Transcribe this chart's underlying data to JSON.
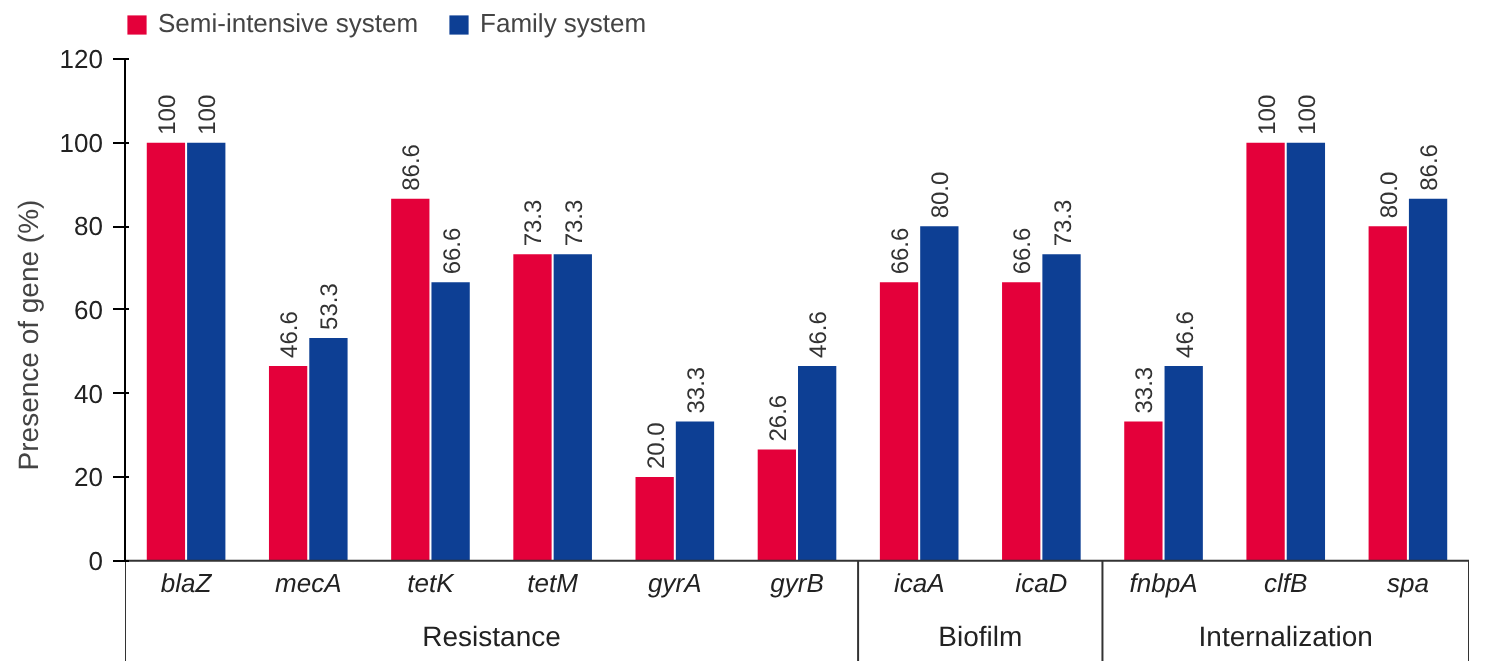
{
  "chart_data": {
    "type": "bar",
    "ylabel": "Presence of gene (%)",
    "categories": [
      "blaZ",
      "mecA",
      "tetK",
      "tetM",
      "gyrA",
      "gyrB",
      "icaA",
      "icaD",
      "fnbpA",
      "clfB",
      "spa"
    ],
    "series": [
      {
        "name": "Semi-intensive system",
        "color": "#e4003a",
        "values": [
          100,
          46.6,
          86.6,
          73.3,
          20.0,
          26.6,
          66.6,
          66.6,
          33.3,
          100,
          80.0
        ],
        "value_labels": [
          "100",
          "46.6",
          "86.6",
          "73.3",
          "20.0",
          "26.6",
          "66.6",
          "66.6",
          "33.3",
          "100",
          "80.0"
        ]
      },
      {
        "name": "Family system",
        "color": "#0d3f94",
        "values": [
          100,
          53.3,
          66.6,
          73.3,
          33.3,
          46.6,
          80.0,
          73.3,
          46.6,
          100,
          86.6
        ],
        "value_labels": [
          "100",
          "53.3",
          "66.6",
          "73.3",
          "33.3",
          "46.6",
          "80.0",
          "73.3",
          "46.6",
          "100",
          "86.6"
        ]
      }
    ],
    "ylim": [
      0,
      120
    ],
    "yticks": [
      0,
      20,
      40,
      60,
      80,
      100,
      120
    ],
    "grid": false,
    "legend": "top left",
    "annotations": [
      "Resistance",
      "Biofilm",
      "Internalization"
    ]
  }
}
